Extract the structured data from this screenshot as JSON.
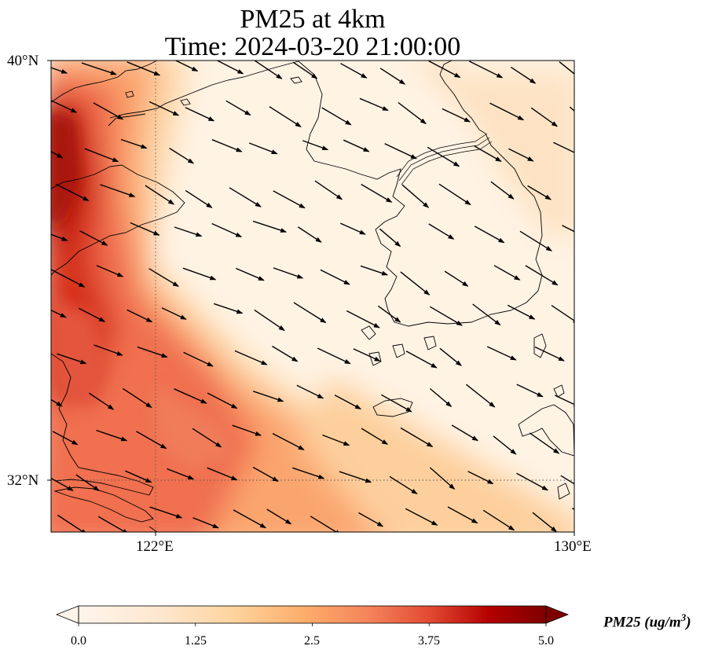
{
  "title_line1": "PM25 at 4km",
  "title_line2": "Time: 2024-03-20 21:00:00",
  "axes": {
    "lat_ticks": [
      "40°N",
      "32°N"
    ],
    "lon_ticks": [
      "122°E",
      "130°E"
    ]
  },
  "colorbar": {
    "label": "PM25 (ug/m",
    "label_sup": "3",
    "label_end": ")",
    "ticks": [
      "0.0",
      "1.25",
      "2.5",
      "3.75",
      "5.0"
    ],
    "vmin": 0.0,
    "vmax": 5.0,
    "colormap": [
      "#fff5eb",
      "#fdd49e",
      "#fdae6b",
      "#f16913",
      "#d7301f",
      "#a50f15",
      "#7f0000"
    ],
    "extend": "both"
  },
  "map": {
    "extent_lon": [
      120,
      130
    ],
    "extent_lat": [
      31,
      40
    ],
    "gridlines": {
      "lon": [
        122
      ],
      "lat": [
        32
      ],
      "style": "dotted"
    },
    "variable": "PM25",
    "wind_direction": "from north-west toward south-east"
  }
}
